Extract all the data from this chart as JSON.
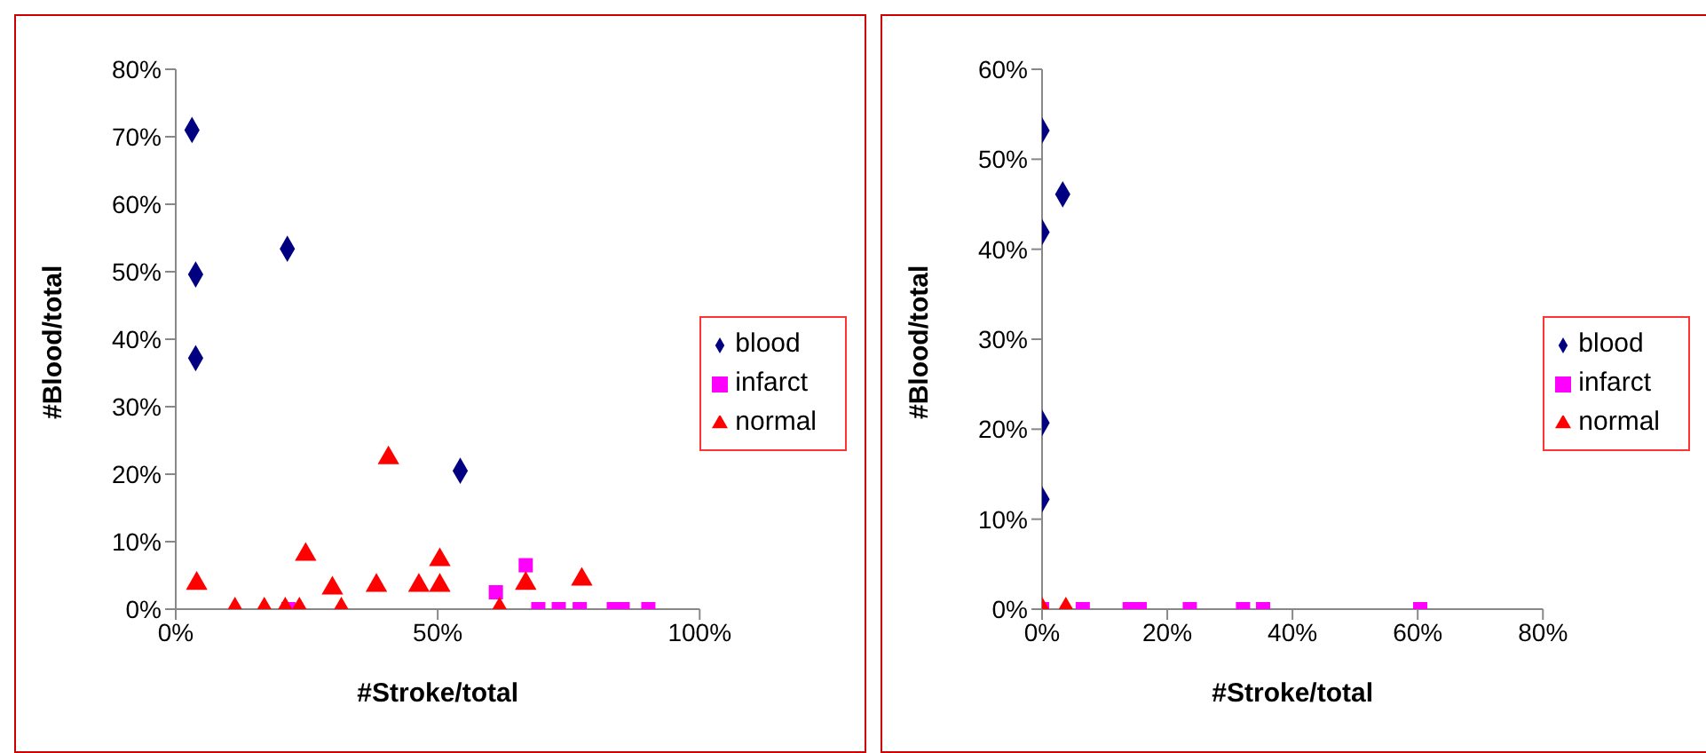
{
  "chart_data": [
    {
      "type": "scatter",
      "xlabel": "#Stroke/total",
      "ylabel": "#Blood/total",
      "xlim": [
        0,
        100
      ],
      "ylim": [
        0,
        80
      ],
      "xticks": [
        {
          "value": 0,
          "label": "0%"
        },
        {
          "value": 50,
          "label": "50%"
        },
        {
          "value": 100,
          "label": "100%"
        }
      ],
      "yticks": [
        {
          "value": 0,
          "label": "0%"
        },
        {
          "value": 10,
          "label": "10%"
        },
        {
          "value": 20,
          "label": "20%"
        },
        {
          "value": 30,
          "label": "30%"
        },
        {
          "value": 40,
          "label": "40%"
        },
        {
          "value": 50,
          "label": "50%"
        },
        {
          "value": 60,
          "label": "60%"
        },
        {
          "value": 70,
          "label": "70%"
        },
        {
          "value": 80,
          "label": "80%"
        }
      ],
      "grid": false,
      "legend": "right",
      "series": [
        {
          "name": "blood",
          "color": "#000080",
          "marker": "diamond",
          "x": [
            3.1,
            3.8,
            3.8,
            21.3,
            54.3
          ],
          "values": [
            71,
            49.6,
            37.2,
            53.4,
            20.5
          ]
        },
        {
          "name": "infarct",
          "color": "#ff00ff",
          "marker": "square",
          "x": [
            21.5,
            61.1,
            66.8,
            69.2,
            73.1,
            77.1,
            83.6,
            85.3,
            90.2
          ],
          "values": [
            0,
            2.5,
            6.5,
            0,
            0,
            0,
            0,
            0,
            0
          ]
        },
        {
          "name": "normal",
          "color": "#ff0000",
          "marker": "triangle",
          "x": [
            4,
            11.3,
            16.9,
            20.9,
            23.6,
            24.8,
            29.9,
            31.6,
            38.3,
            40.6,
            46.4,
            50.4,
            50.4,
            61.8,
            66.8,
            77.5
          ],
          "values": [
            3.8,
            0,
            0,
            0,
            0,
            8.1,
            3.1,
            0,
            3.5,
            22.4,
            3.5,
            3.5,
            7.3,
            0,
            3.8,
            4.4
          ]
        }
      ]
    },
    {
      "type": "scatter",
      "xlabel": "#Stroke/total",
      "ylabel": "#Blood/total",
      "xlim": [
        0,
        80
      ],
      "ylim": [
        0,
        60
      ],
      "xticks": [
        {
          "value": 0,
          "label": "0%"
        },
        {
          "value": 20,
          "label": "20%"
        },
        {
          "value": 40,
          "label": "40%"
        },
        {
          "value": 60,
          "label": "60%"
        },
        {
          "value": 80,
          "label": "80%"
        }
      ],
      "yticks": [
        {
          "value": 0,
          "label": "0%"
        },
        {
          "value": 10,
          "label": "10%"
        },
        {
          "value": 20,
          "label": "20%"
        },
        {
          "value": 30,
          "label": "30%"
        },
        {
          "value": 40,
          "label": "40%"
        },
        {
          "value": 50,
          "label": "50%"
        },
        {
          "value": 60,
          "label": "60%"
        }
      ],
      "grid": false,
      "legend": "right",
      "series": [
        {
          "name": "blood",
          "color": "#000080",
          "marker": "diamond",
          "x": [
            0,
            3.3,
            0,
            0,
            0
          ],
          "values": [
            53.2,
            46.1,
            41.9,
            20.7,
            12.2
          ]
        },
        {
          "name": "infarct",
          "color": "#ff00ff",
          "marker": "square",
          "x": [
            0,
            6.5,
            14,
            15.6,
            23.6,
            32.1,
            35.3,
            60.4
          ],
          "values": [
            0,
            0,
            0,
            0,
            0,
            0,
            0,
            0
          ]
        },
        {
          "name": "normal",
          "color": "#ff0000",
          "marker": "triangle",
          "x": [
            0,
            3.8
          ],
          "values": [
            0,
            0
          ]
        }
      ]
    }
  ]
}
